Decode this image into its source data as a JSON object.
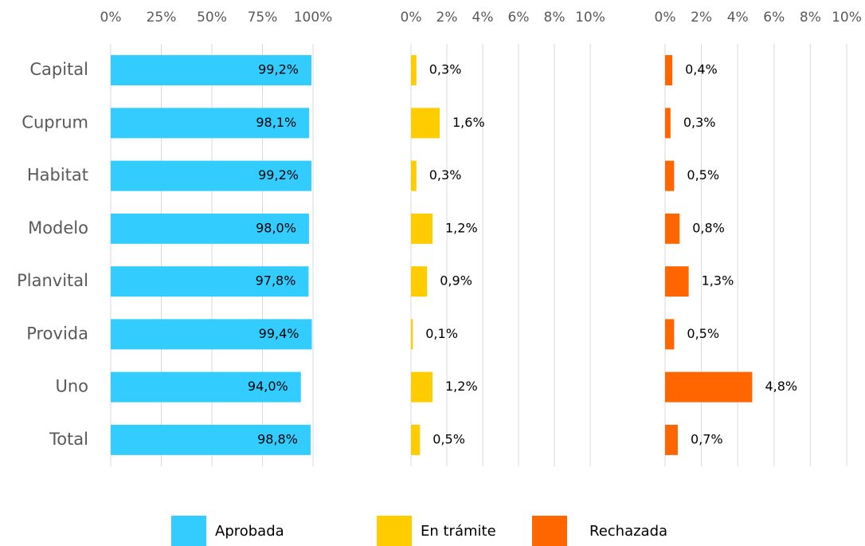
{
  "chart_data": {
    "type": "bar",
    "orientation": "horizontal",
    "grid": true,
    "legend": "bottom",
    "categories": [
      "Capital",
      "Cuprum",
      "Habitat",
      "Modelo",
      "Planvital",
      "Provida",
      "Uno",
      "Total"
    ],
    "series": [
      {
        "name": "Aprobada",
        "color": "#33ccff",
        "values": [
          99.2,
          98.1,
          99.2,
          98.0,
          97.8,
          99.4,
          94.0,
          98.8
        ],
        "value_labels": [
          "99,2%",
          "98,1%",
          "99,2%",
          "98,0%",
          "97,8%",
          "99,4%",
          "94,0%",
          "98,8%"
        ],
        "xlim": [
          0,
          100
        ],
        "xticks": [
          {
            "value": 0,
            "label": "0%"
          },
          {
            "value": 25,
            "label": "25%"
          },
          {
            "value": 50,
            "label": "50%"
          },
          {
            "value": 75,
            "label": "75%"
          },
          {
            "value": 100,
            "label": "100%"
          }
        ]
      },
      {
        "name": "En trámite",
        "color": "#ffcc00",
        "values": [
          0.3,
          1.6,
          0.3,
          1.2,
          0.9,
          0.1,
          1.2,
          0.5
        ],
        "value_labels": [
          "0,3%",
          "1,6%",
          "0,3%",
          "1,2%",
          "0,9%",
          "0,1%",
          "1,2%",
          "0,5%"
        ],
        "xlim": [
          0,
          10
        ],
        "xticks": [
          {
            "value": 0,
            "label": "0%"
          },
          {
            "value": 2,
            "label": "2%"
          },
          {
            "value": 4,
            "label": "4%"
          },
          {
            "value": 6,
            "label": "6%"
          },
          {
            "value": 8,
            "label": "8%"
          },
          {
            "value": 10,
            "label": "10%"
          }
        ]
      },
      {
        "name": "Rechazada",
        "color": "#ff6600",
        "values": [
          0.4,
          0.3,
          0.5,
          0.8,
          1.3,
          0.5,
          4.8,
          0.7
        ],
        "value_labels": [
          "0,4%",
          "0,3%",
          "0,5%",
          "0,8%",
          "1,3%",
          "0,5%",
          "4,8%",
          "0,7%"
        ],
        "xlim": [
          0,
          10
        ],
        "xticks": [
          {
            "value": 0,
            "label": "0%"
          },
          {
            "value": 2,
            "label": "2%"
          },
          {
            "value": 4,
            "label": "4%"
          },
          {
            "value": 6,
            "label": "6%"
          },
          {
            "value": 8,
            "label": "8%"
          },
          {
            "value": 10,
            "label": "10%"
          }
        ]
      }
    ]
  }
}
